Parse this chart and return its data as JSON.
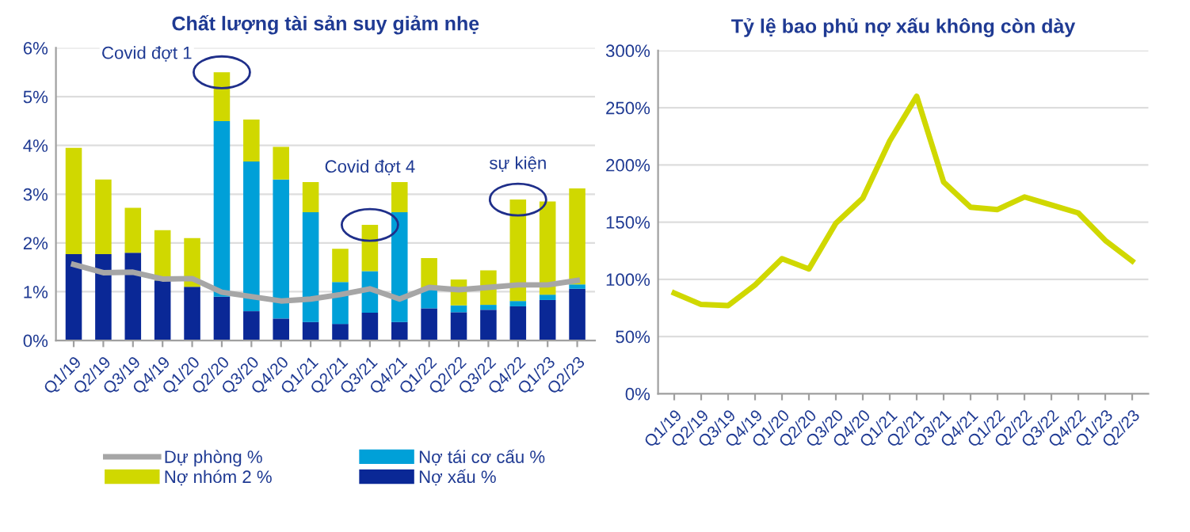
{
  "chart_data": [
    {
      "type": "bar",
      "title": "Chất lượng tài sản suy giảm nhẹ",
      "stacked": true,
      "grid": "y",
      "legend": "bottom",
      "categories": [
        "Q1/19",
        "Q2/19",
        "Q3/19",
        "Q4/19",
        "Q1/20",
        "Q2/20",
        "Q3/20",
        "Q4/20",
        "Q1/21",
        "Q2/21",
        "Q3/21",
        "Q4/21",
        "Q1/22",
        "Q2/22",
        "Q3/22",
        "Q4/22",
        "Q1/23",
        "Q2/23"
      ],
      "ylim": [
        0,
        6
      ],
      "yticks": [
        {
          "value": 0,
          "label": "0%"
        },
        {
          "value": 1,
          "label": "1%"
        },
        {
          "value": 2,
          "label": "2%"
        },
        {
          "value": 3,
          "label": "3%"
        },
        {
          "value": 4,
          "label": "4%"
        },
        {
          "value": 5,
          "label": "5%"
        },
        {
          "value": 6,
          "label": "6%"
        }
      ],
      "series": [
        {
          "name": "Nợ xấu %",
          "color": "#0a2896",
          "values": [
            1.77,
            1.77,
            1.8,
            1.23,
            1.1,
            0.9,
            0.6,
            0.45,
            0.38,
            0.34,
            0.57,
            0.38,
            0.66,
            0.58,
            0.63,
            0.7,
            0.83,
            1.06
          ]
        },
        {
          "name": "Nợ tái cơ cấu %",
          "color": "#00a0d8",
          "values": [
            0,
            0,
            0,
            0,
            0,
            3.6,
            3.07,
            2.85,
            2.25,
            0.86,
            0.85,
            2.25,
            0.38,
            0.14,
            0.1,
            0.11,
            0.11,
            0.09
          ]
        },
        {
          "name": "Nợ nhóm 2 %",
          "color": "#d0d800",
          "values": [
            2.18,
            1.53,
            0.92,
            1.03,
            1.0,
            1.0,
            0.86,
            0.67,
            0.62,
            0.68,
            0.95,
            0.62,
            0.65,
            0.53,
            0.71,
            2.08,
            1.91,
            1.97
          ]
        },
        {
          "name": "Dự phòng %",
          "type": "line",
          "color": "#a6a6a6",
          "values": [
            1.56,
            1.39,
            1.4,
            1.26,
            1.27,
            0.99,
            0.9,
            0.81,
            0.85,
            0.94,
            1.06,
            0.85,
            1.09,
            1.04,
            1.09,
            1.14,
            1.14,
            1.23
          ]
        }
      ],
      "annotations": [
        {
          "text": "Covid đợt 1",
          "x": "Q2/20",
          "y": 5.5
        },
        {
          "text": "Covid đợt 4",
          "x": "Q3/21",
          "y": 2.37
        },
        {
          "text": "sự kiện",
          "x": "Q4/22",
          "y": 2.89
        }
      ]
    },
    {
      "type": "line",
      "title": "Tỷ lệ bao phủ nợ xấu không còn dày",
      "grid": "y",
      "categories": [
        "Q1/19",
        "Q2/19",
        "Q3/19",
        "Q4/19",
        "Q1/20",
        "Q2/20",
        "Q3/20",
        "Q4/20",
        "Q1/21",
        "Q2/21",
        "Q3/21",
        "Q4/21",
        "Q1/22",
        "Q2/22",
        "Q3/22",
        "Q4/22",
        "Q1/23",
        "Q2/23"
      ],
      "ylim": [
        0,
        300
      ],
      "yticks": [
        {
          "value": 0,
          "label": "0%"
        },
        {
          "value": 50,
          "label": "50%"
        },
        {
          "value": 100,
          "label": "100%"
        },
        {
          "value": 150,
          "label": "150%"
        },
        {
          "value": 200,
          "label": "200%"
        },
        {
          "value": 250,
          "label": "250%"
        },
        {
          "value": 300,
          "label": "300%"
        }
      ],
      "series": [
        {
          "color": "#d0d800",
          "values": [
            88,
            78,
            77,
            95,
            118,
            109,
            149,
            171,
            221,
            260,
            185,
            163,
            161,
            172,
            165,
            158,
            134,
            116
          ]
        }
      ]
    }
  ]
}
